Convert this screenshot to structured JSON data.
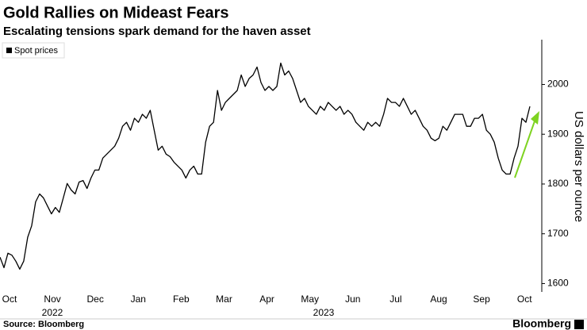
{
  "chart_data": {
    "type": "line",
    "title": "Gold Rallies on Mideast Fears",
    "subtitle": "Escalating tensions spark demand for the haven asset",
    "source": "Source: Bloomberg",
    "brand": "Bloomberg",
    "y_axis_label": "US dollars per ounce",
    "month_labels": [
      "Oct",
      "Nov",
      "Dec",
      "Jan",
      "Feb",
      "Mar",
      "Apr",
      "May",
      "Jun",
      "Jul",
      "Aug",
      "Sep",
      "Oct"
    ],
    "year_labels": [
      "2022",
      "2023"
    ],
    "ylim": [
      1580,
      2090
    ],
    "yticks": [
      1600,
      1700,
      1800,
      1900,
      2000
    ],
    "series": [
      {
        "name": "Spot prices",
        "color": "#000000",
        "values": [
          1653,
          1632,
          1661,
          1657,
          1645,
          1629,
          1645,
          1693,
          1716,
          1764,
          1780,
          1772,
          1756,
          1740,
          1753,
          1743,
          1772,
          1801,
          1788,
          1780,
          1804,
          1807,
          1791,
          1812,
          1828,
          1828,
          1852,
          1860,
          1868,
          1876,
          1892,
          1916,
          1924,
          1908,
          1932,
          1924,
          1940,
          1932,
          1948,
          1908,
          1868,
          1876,
          1860,
          1855,
          1844,
          1836,
          1828,
          1812,
          1828,
          1836,
          1820,
          1820,
          1884,
          1916,
          1924,
          1988,
          1948,
          1964,
          1972,
          1980,
          1988,
          2019,
          1996,
          2012,
          2019,
          2035,
          2004,
          1988,
          1996,
          1988,
          1996,
          2043,
          2019,
          2027,
          2012,
          1988,
          1964,
          1972,
          1956,
          1948,
          1940,
          1956,
          1948,
          1964,
          1956,
          1948,
          1956,
          1940,
          1948,
          1940,
          1924,
          1916,
          1908,
          1924,
          1916,
          1924,
          1916,
          1940,
          1972,
          1964,
          1964,
          1956,
          1972,
          1956,
          1940,
          1948,
          1932,
          1916,
          1908,
          1892,
          1887,
          1892,
          1916,
          1908,
          1924,
          1940,
          1940,
          1940,
          1916,
          1916,
          1932,
          1932,
          1940,
          1908,
          1900,
          1884,
          1852,
          1828,
          1820,
          1820,
          1852,
          1876,
          1932,
          1924,
          1956
        ]
      }
    ]
  }
}
